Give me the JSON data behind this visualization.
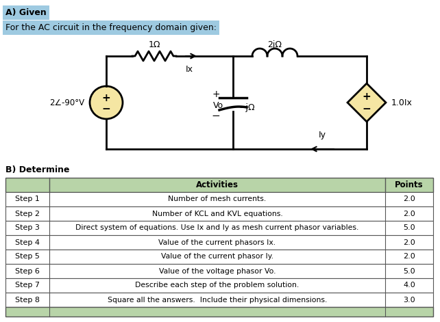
{
  "title_a": "A) Given",
  "subtitle": "For the AC circuit in the frequency domain given:",
  "title_b": "B) Determine",
  "bg_color": "#ffffff",
  "header_bg": "#b8d4a8",
  "table_steps": [
    "Step 1",
    "Step 2",
    "Step 3",
    "Step 4",
    "Step 5",
    "Step 6",
    "Step 7",
    "Step 8"
  ],
  "table_activities": [
    "Number of mesh currents.",
    "Number of KCL and KVL equations.",
    "Direct system of equations. Use Ix and Iy as mesh current phasor variables.",
    "Value of the current phasors Ix.",
    "Value of the current phasor Iy.",
    "Value of the voltage phasor Vo.",
    "Describe each step of the problem solution.",
    "Square all the answers.  Include their physical dimensions."
  ],
  "table_points": [
    2.0,
    2.0,
    5.0,
    2.0,
    2.0,
    5.0,
    4.0,
    3.0
  ],
  "circuit_color": "#000000",
  "component_fill": "#f5e6a3",
  "label_highlight": "#9ecae1"
}
